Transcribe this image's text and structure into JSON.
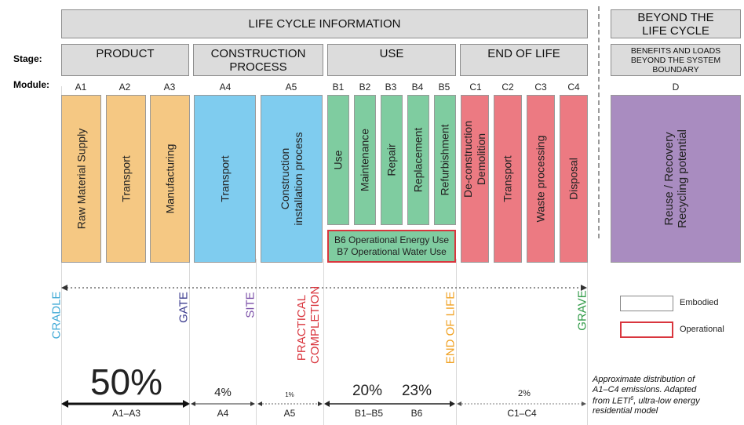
{
  "headers": {
    "life_cycle": "LIFE CYCLE INFORMATION",
    "beyond": "BEYOND THE LIFE CYCLE"
  },
  "row_labels": {
    "stage": "Stage:",
    "module": "Module:"
  },
  "stages": {
    "product": "PRODUCT",
    "construction": "CONSTRUCTION PROCESS",
    "use": "USE",
    "end_of_life": "END OF LIFE",
    "benefits": "BENEFITS AND LOADS BEYOND THE SYSTEM BOUNDARY"
  },
  "modules": {
    "a1": {
      "code": "A1",
      "label": "Raw Material Supply"
    },
    "a2": {
      "code": "A2",
      "label": "Transport"
    },
    "a3": {
      "code": "A3",
      "label": "Manufacturing"
    },
    "a4": {
      "code": "A4",
      "label": "Transport"
    },
    "a5": {
      "code": "A5",
      "label": "Construction installation process"
    },
    "b1": {
      "code": "B1",
      "label": "Use"
    },
    "b2": {
      "code": "B2",
      "label": "Maintenance"
    },
    "b3": {
      "code": "B3",
      "label": "Repair"
    },
    "b4": {
      "code": "B4",
      "label": "Replacement"
    },
    "b5": {
      "code": "B5",
      "label": "Refurbishment"
    },
    "c1": {
      "code": "C1",
      "label": "De-construction Demolition"
    },
    "c2": {
      "code": "C2",
      "label": "Transport"
    },
    "c3": {
      "code": "C3",
      "label": "Waste processing"
    },
    "c4": {
      "code": "C4",
      "label": "Disposal"
    },
    "d": {
      "code": "D",
      "label": "Reuse / Recovery Recycling potential"
    }
  },
  "operational": {
    "b6": "B6 Operational Energy Use",
    "b7": "B7 Operational Water Use"
  },
  "milestones": {
    "cradle": "CRADLE",
    "gate": "GATE",
    "site": "SITE",
    "practical_completion": "PRACTICAL COMPLETION",
    "end_of_life": "END OF LIFE",
    "grave": "GRAVE"
  },
  "colors": {
    "product": "#f5c883",
    "construction": "#7fccef",
    "use": "#7fcca0",
    "end_of_life": "#ec7a82",
    "beyond": "#a98cc0",
    "operational_border": "#d9363e",
    "cradle": "#3fa9d6",
    "gate": "#3d3d8f",
    "site": "#7b4fa8",
    "practical_completion": "#d9363e",
    "end_of_life_text": "#f0a020",
    "grave": "#2e9a45"
  },
  "legend": {
    "embodied": "Embodied",
    "operational": "Operational"
  },
  "distribution": {
    "a1_a3": {
      "percent": "50%",
      "range": "A1–A3"
    },
    "a4": {
      "percent": "4%",
      "range": "A4"
    },
    "a5": {
      "percent": "1%",
      "range": "A5"
    },
    "b1_b5": {
      "percent": "20%",
      "range": "B1–B5"
    },
    "b6": {
      "percent": "23%",
      "range": "B6"
    },
    "c1_c4": {
      "percent": "2%",
      "range": "C1–C4"
    }
  },
  "note": {
    "line1": "Approximate distribution of",
    "line2": "A1–C4 emissions. Adapted",
    "line3_pre": "from LETI",
    "line3_sup": "6",
    "line3_post": ", ultra-low energy",
    "line4": "residential model"
  }
}
